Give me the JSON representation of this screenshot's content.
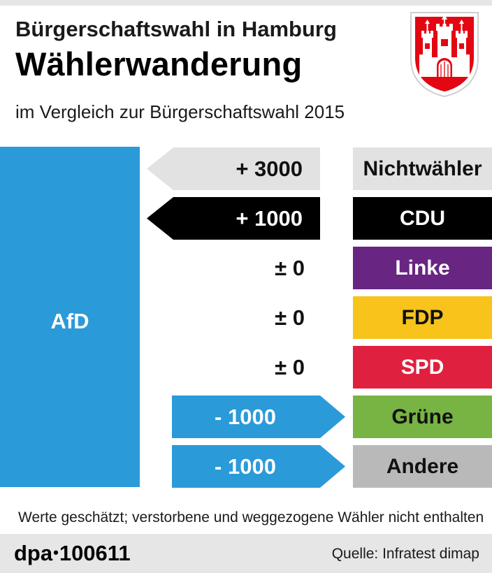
{
  "header": {
    "supertitle": "Bürgerschaftswahl in Hamburg",
    "title": "Wählerwanderung",
    "subtitle": "im Vergleich zur Bürgerschaftswahl 2015"
  },
  "emblem": {
    "name": "hamburg-coat-of-arms-icon",
    "colors": {
      "shield": "#e30613",
      "castle": "#ffffff"
    }
  },
  "colors": {
    "afd": "#2b9ad8",
    "gain_from_nichtwaehler": "#e2e2e2",
    "gain_from_cdu": "#000000",
    "loss_arrow": "#2b9ad8",
    "Nichtwähler": "#e2e2e2",
    "CDU": "#000000",
    "Linke": "#682582",
    "FDP": "#f8c31a",
    "SPD": "#e0203f",
    "Grüne": "#77b443",
    "Andere": "#b9b9b9"
  },
  "chart_data": {
    "type": "bar",
    "reference_party": "AfD",
    "categories": [
      "Nichtwähler",
      "CDU",
      "Linke",
      "FDP",
      "SPD",
      "Grüne",
      "Andere"
    ],
    "values": [
      3000,
      1000,
      0,
      0,
      0,
      -1000,
      -1000
    ],
    "labels": [
      "+ 3000",
      "+ 1000",
      "± 0",
      "± 0",
      "± 0",
      "- 1000",
      "- 1000"
    ]
  },
  "notes": {
    "footnote": "Werte geschätzt; verstorbene und weggezogene Wähler nicht enthalten"
  },
  "footer": {
    "brand_prefix": "dpa",
    "brand_dot": "•",
    "brand_number": "100611",
    "source": "Quelle: Infratest dimap"
  }
}
